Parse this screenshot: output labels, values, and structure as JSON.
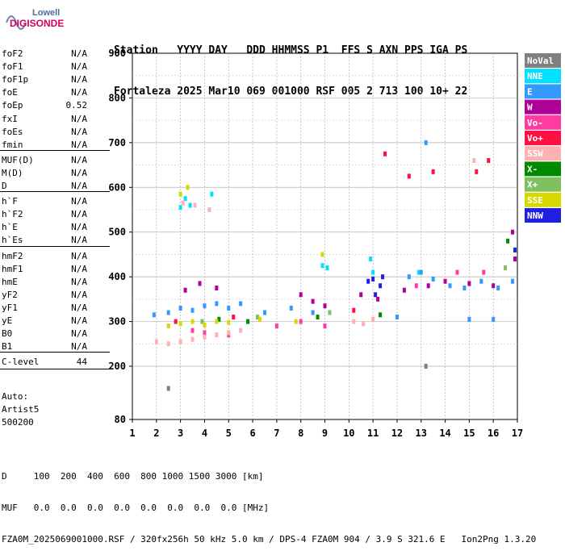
{
  "logo": {
    "line1": "Lowell",
    "line2": "DIGISONDE"
  },
  "header": {
    "line1": "Station   YYYY DAY   DDD HHMMSS P1  FFS S AXN PPS IGA PS",
    "line2": "Fortaleza 2025 Mar10 069 001000 RSF 005 2 713 100 10+ 22"
  },
  "parameters": [
    {
      "name": "foF2",
      "value": "N/A"
    },
    {
      "name": "foF1",
      "value": "N/A"
    },
    {
      "name": "foF1p",
      "value": "N/A"
    },
    {
      "name": "foE",
      "value": "N/A"
    },
    {
      "name": "foEp",
      "value": "0.52"
    },
    {
      "name": "fxI",
      "value": "N/A"
    },
    {
      "name": "foEs",
      "value": "N/A"
    },
    {
      "name": "fmin",
      "value": "N/A"
    },
    {
      "name": "MUF(D)",
      "value": "N/A"
    },
    {
      "name": "M(D)",
      "value": "N/A"
    },
    {
      "name": "D",
      "value": "N/A"
    },
    {
      "name": "h`F",
      "value": "N/A"
    },
    {
      "name": "h`F2",
      "value": "N/A"
    },
    {
      "name": "h`E",
      "value": "N/A"
    },
    {
      "name": "h`Es",
      "value": "N/A"
    },
    {
      "name": "hmF2",
      "value": "N/A"
    },
    {
      "name": "hmF1",
      "value": "N/A"
    },
    {
      "name": "hmE",
      "value": "N/A"
    },
    {
      "name": "yF2",
      "value": "N/A"
    },
    {
      "name": "yF1",
      "value": "N/A"
    },
    {
      "name": "yE",
      "value": "N/A"
    },
    {
      "name": "B0",
      "value": "N/A"
    },
    {
      "name": "B1",
      "value": "N/A"
    },
    {
      "name": "C-level",
      "value": "44"
    }
  ],
  "autoscale": {
    "line1": "Auto:",
    "line2": "Artist5",
    "line3": "500200"
  },
  "footer": {
    "d_line": "D     100  200  400  600  800 1000 1500 3000 [km]",
    "muf_line": "MUF   0.0  0.0  0.0  0.0  0.0  0.0  0.0  0.0 [MHz]",
    "file_line": "FZA0M_2025069001000.RSF / 320fx256h 50 kHz 5.0 km / DPS-4 FZA0M 904 / 3.9 S 321.6 E   Ion2Png 1.3.20"
  },
  "legend": [
    {
      "label": "NoVal",
      "color": "#808080"
    },
    {
      "label": "NNE",
      "color": "#00e0ff"
    },
    {
      "label": "E",
      "color": "#3399ff"
    },
    {
      "label": "W",
      "color": "#b0009a"
    },
    {
      "label": "Vo-",
      "color": "#ff3ca0"
    },
    {
      "label": "Vo+",
      "color": "#ff1040"
    },
    {
      "label": "SSW",
      "color": "#ffb0b0"
    },
    {
      "label": "X-",
      "color": "#008a00"
    },
    {
      "label": "X+",
      "color": "#80c060"
    },
    {
      "label": "SSE",
      "color": "#d8d800"
    },
    {
      "label": "NNW",
      "color": "#2020e0"
    }
  ],
  "chart_data": {
    "type": "scatter",
    "title": "",
    "xlabel": "",
    "ylabel": "",
    "x_ticks": [
      1,
      2,
      3,
      4,
      5,
      6,
      7,
      8,
      9,
      10,
      11,
      12,
      13,
      14,
      15,
      16,
      17
    ],
    "y_ticks": [
      80,
      200,
      300,
      400,
      500,
      600,
      700,
      800,
      900
    ],
    "xlim": [
      1,
      17
    ],
    "ylim_note": "virtual height axis, 80 km bottom, 900 km top",
    "ylim": [
      80,
      900
    ],
    "grid": true,
    "series": [
      {
        "name": "NNE",
        "color": "#00e0ff",
        "points": [
          [
            3.0,
            555
          ],
          [
            3.2,
            575
          ],
          [
            3.4,
            560
          ],
          [
            4.3,
            585
          ],
          [
            8.9,
            425
          ],
          [
            9.1,
            420
          ],
          [
            11.0,
            410
          ],
          [
            10.9,
            440
          ],
          [
            12.9,
            410
          ]
        ]
      },
      {
        "name": "E",
        "color": "#3399ff",
        "points": [
          [
            1.9,
            315
          ],
          [
            2.5,
            320
          ],
          [
            3.0,
            330
          ],
          [
            3.5,
            325
          ],
          [
            4.0,
            335
          ],
          [
            4.5,
            340
          ],
          [
            5.0,
            330
          ],
          [
            5.5,
            340
          ],
          [
            6.5,
            320
          ],
          [
            7.6,
            330
          ],
          [
            8.5,
            320
          ],
          [
            12.5,
            400
          ],
          [
            13.0,
            410
          ],
          [
            13.5,
            395
          ],
          [
            14.2,
            380
          ],
          [
            14.8,
            375
          ],
          [
            15.5,
            390
          ],
          [
            16.2,
            375
          ],
          [
            16.8,
            390
          ],
          [
            13.2,
            700
          ],
          [
            12.0,
            310
          ],
          [
            15.0,
            305
          ],
          [
            16.0,
            305
          ]
        ]
      },
      {
        "name": "W",
        "color": "#b0009a",
        "points": [
          [
            3.2,
            370
          ],
          [
            3.8,
            385
          ],
          [
            4.5,
            375
          ],
          [
            8.0,
            360
          ],
          [
            8.5,
            345
          ],
          [
            9.0,
            335
          ],
          [
            10.5,
            360
          ],
          [
            11.2,
            350
          ],
          [
            12.3,
            370
          ],
          [
            13.3,
            380
          ],
          [
            14.0,
            390
          ],
          [
            15.0,
            385
          ],
          [
            16.0,
            380
          ],
          [
            16.9,
            440
          ],
          [
            16.8,
            500
          ]
        ]
      },
      {
        "name": "Vo-",
        "color": "#ff3ca0",
        "points": [
          [
            3.5,
            280
          ],
          [
            4.0,
            275
          ],
          [
            5.0,
            270
          ],
          [
            7.0,
            290
          ],
          [
            8.0,
            300
          ],
          [
            9.0,
            290
          ],
          [
            12.8,
            380
          ],
          [
            14.5,
            410
          ],
          [
            15.6,
            410
          ]
        ]
      },
      {
        "name": "Vo+",
        "color": "#ff1040",
        "points": [
          [
            2.8,
            300
          ],
          [
            5.2,
            310
          ],
          [
            10.2,
            325
          ],
          [
            11.5,
            675
          ],
          [
            13.5,
            635
          ],
          [
            15.3,
            635
          ],
          [
            15.8,
            660
          ],
          [
            12.5,
            625
          ]
        ]
      },
      {
        "name": "SSW",
        "color": "#ffb0b0",
        "points": [
          [
            2.0,
            255
          ],
          [
            2.5,
            250
          ],
          [
            3.0,
            255
          ],
          [
            3.5,
            260
          ],
          [
            4.0,
            265
          ],
          [
            4.5,
            270
          ],
          [
            5.0,
            275
          ],
          [
            5.5,
            280
          ],
          [
            3.1,
            565
          ],
          [
            3.6,
            560
          ],
          [
            4.2,
            550
          ],
          [
            10.2,
            300
          ],
          [
            10.6,
            295
          ],
          [
            11.0,
            305
          ],
          [
            15.2,
            660
          ]
        ]
      },
      {
        "name": "X-",
        "color": "#008a00",
        "points": [
          [
            4.6,
            305
          ],
          [
            5.8,
            300
          ],
          [
            8.7,
            310
          ],
          [
            11.3,
            315
          ],
          [
            16.6,
            480
          ]
        ]
      },
      {
        "name": "X+",
        "color": "#80c060",
        "points": [
          [
            3.9,
            300
          ],
          [
            6.2,
            310
          ],
          [
            9.2,
            320
          ],
          [
            16.5,
            420
          ]
        ]
      },
      {
        "name": "SSE",
        "color": "#d8d800",
        "points": [
          [
            2.5,
            290
          ],
          [
            3.0,
            295
          ],
          [
            3.5,
            300
          ],
          [
            4.0,
            292
          ],
          [
            4.5,
            300
          ],
          [
            5.0,
            298
          ],
          [
            6.3,
            305
          ],
          [
            7.8,
            300
          ],
          [
            8.9,
            450
          ],
          [
            3.0,
            585
          ],
          [
            3.3,
            600
          ]
        ]
      },
      {
        "name": "NNW",
        "color": "#2020e0",
        "points": [
          [
            11.0,
            395
          ],
          [
            11.3,
            380
          ],
          [
            10.8,
            390
          ],
          [
            11.4,
            400
          ],
          [
            11.1,
            360
          ],
          [
            16.9,
            460
          ]
        ]
      },
      {
        "name": "NoVal",
        "color": "#808080",
        "points": [
          [
            13.2,
            200
          ],
          [
            2.5,
            150
          ]
        ]
      }
    ]
  }
}
